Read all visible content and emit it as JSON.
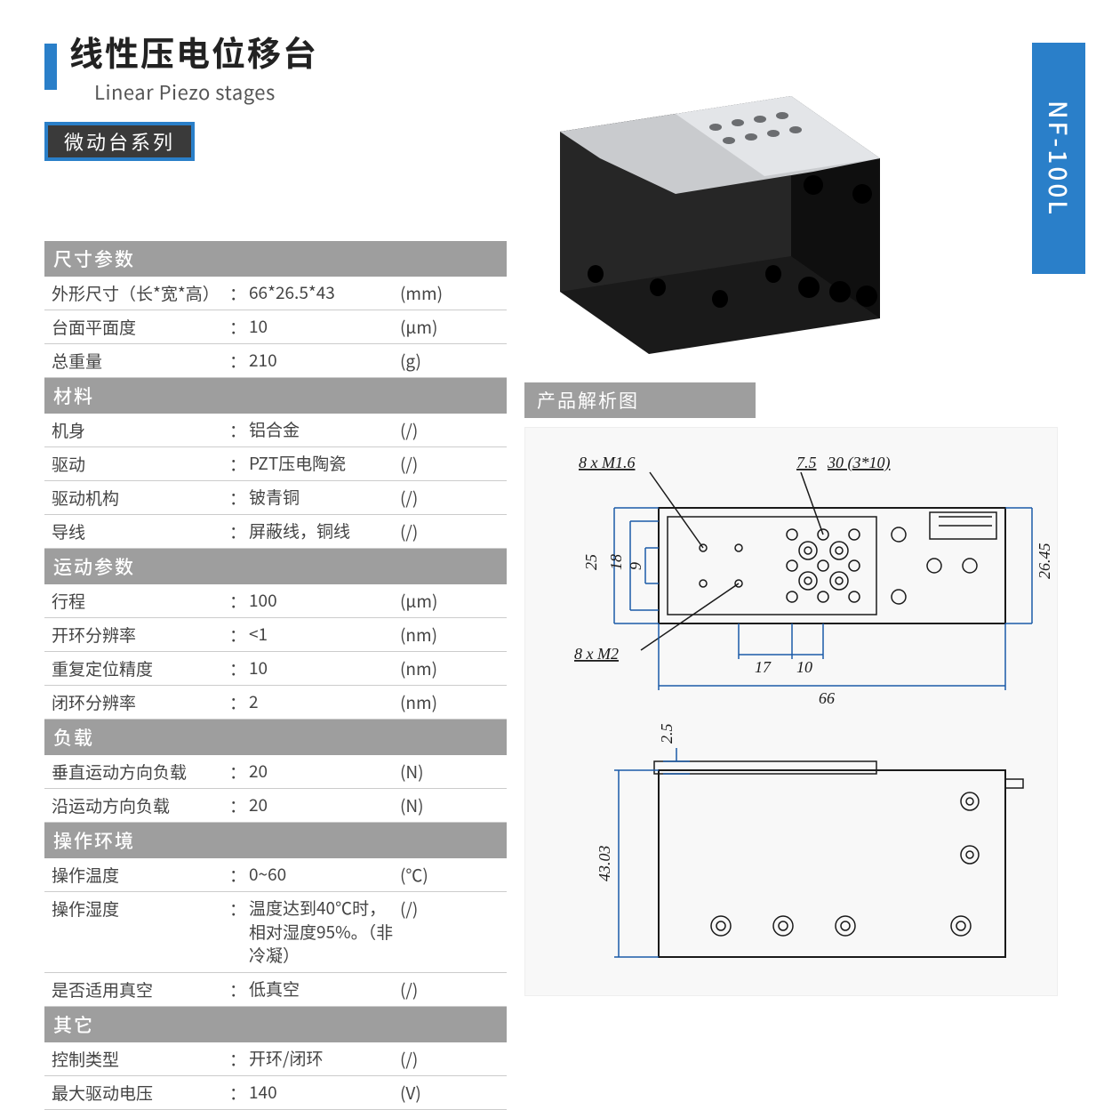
{
  "header": {
    "title_cn": "线性压电位移台",
    "title_en": "Linear Piezo stages",
    "series": "微动台系列",
    "model": "NF-100L",
    "accent_color": "#2a7fc9",
    "badge_border_color": "#2a7fc9",
    "badge_bg_color": "#3a3a3a"
  },
  "diagram_title": "产品解析图",
  "section_header_bg": "#9e9e9e",
  "section_header_fg": "#ffffff",
  "row_border_color": "#cccccc",
  "text_color": "#444444",
  "sections": [
    {
      "title": "尺寸参数",
      "rows": [
        {
          "label": "外形尺寸（长*宽*高）",
          "value": "66*26.5*43",
          "unit": "(mm)"
        },
        {
          "label": "台面平面度",
          "value": "10",
          "unit": "(μm)"
        },
        {
          "label": "总重量",
          "value": "210",
          "unit": "(g)"
        }
      ]
    },
    {
      "title": "材料",
      "rows": [
        {
          "label": "机身",
          "value": "铝合金",
          "unit": "(/)"
        },
        {
          "label": "驱动",
          "value": "PZT压电陶瓷",
          "unit": "(/)"
        },
        {
          "label": "驱动机构",
          "value": "铍青铜",
          "unit": "(/)"
        },
        {
          "label": "导线",
          "value": "屏蔽线，铜线",
          "unit": "(/)"
        }
      ]
    },
    {
      "title": "运动参数",
      "rows": [
        {
          "label": "行程",
          "value": "100",
          "unit": "(μm)"
        },
        {
          "label": "开环分辨率",
          "value": "<1",
          "unit": "(nm)"
        },
        {
          "label": "重复定位精度",
          "value": "10",
          "unit": "(nm)"
        },
        {
          "label": "闭环分辨率",
          "value": "2",
          "unit": "(nm)"
        }
      ]
    },
    {
      "title": "负载",
      "rows": [
        {
          "label": "垂直运动方向负载",
          "value": "20",
          "unit": "(N)"
        },
        {
          "label": "沿运动方向负载",
          "value": "20",
          "unit": "(N)"
        }
      ]
    },
    {
      "title": "操作环境",
      "rows": [
        {
          "label": "操作温度",
          "value": "0~60",
          "unit": "(℃)"
        },
        {
          "label": "操作湿度",
          "value": "温度达到40℃时，相对湿度95%。（非冷凝）",
          "unit": "(/)"
        },
        {
          "label": "是否适用真空",
          "value": "低真空",
          "unit": "(/)"
        }
      ]
    },
    {
      "title": "其它",
      "rows": [
        {
          "label": "控制类型",
          "value": "开环/闭环",
          "unit": "(/)"
        },
        {
          "label": "最大驱动电压",
          "value": "140",
          "unit": "(V)"
        }
      ]
    }
  ],
  "product_render": {
    "body_color": "#1a1a1a",
    "top_plate_color": "#c9cbce",
    "top_plate_light": "#e3e5e8",
    "hole_color": "#0a0a0a"
  },
  "diagrams": {
    "bg_color": "#f8f8f8",
    "line_color": "#1a1a1a",
    "text_color": "#1a1a1a",
    "dim_line_color": "#1a5aa8",
    "font_family": "Times New Roman, serif",
    "font_size_pt": 14,
    "top_view": {
      "annot_left_top": "8 x M1.6",
      "annot_right_top_a": "7.5",
      "annot_right_top_b": "30 (3*10)",
      "annot_left_bottom": "8 x M2",
      "dim_25": "25",
      "dim_18": "18",
      "dim_9": "9",
      "dim_17": "17",
      "dim_10": "10",
      "dim_66": "66",
      "dim_26_45": "26.45"
    },
    "side_view": {
      "dim_2_5": "2.5",
      "dim_43_03": "43.03"
    }
  }
}
